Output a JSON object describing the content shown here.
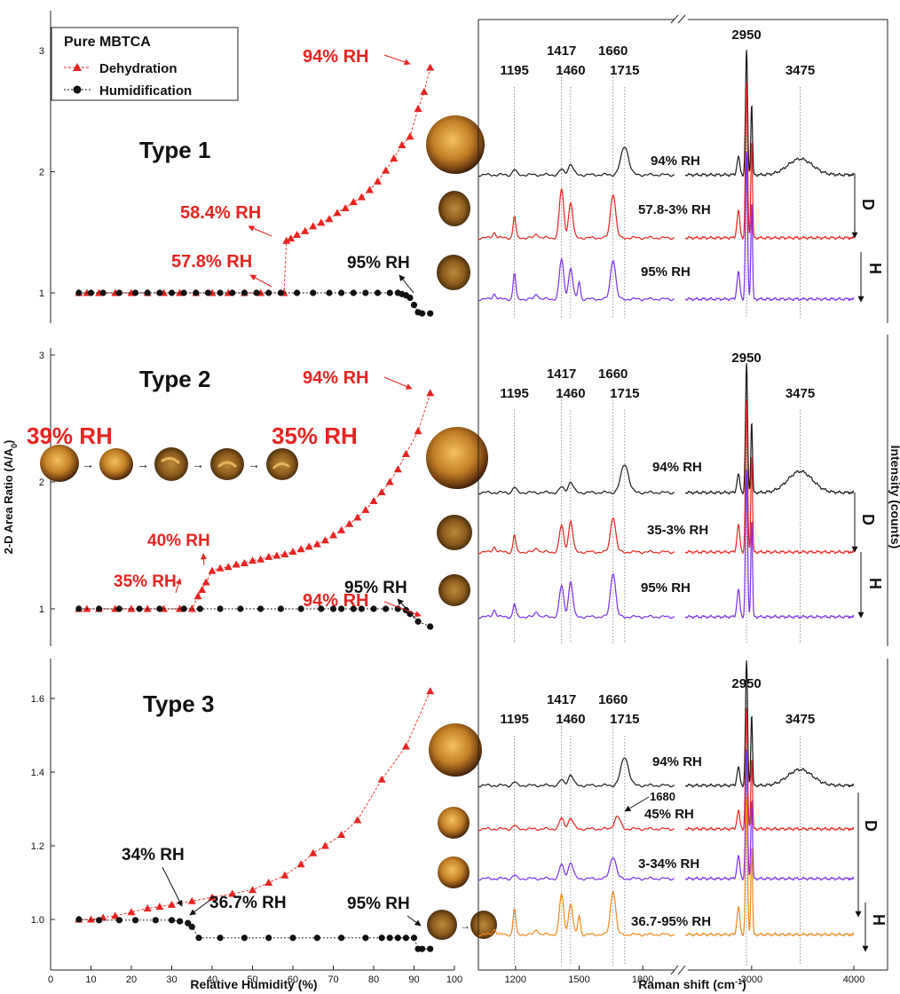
{
  "colors": {
    "dehydration": "#e8231f",
    "humidification": "#111111",
    "trace_94": "#1a1a1a",
    "trace_red": "#e8231f",
    "trace_violet": "#7a2ff0",
    "trace_orange": "#f08a1c",
    "particle": "#c9862b"
  },
  "legend": {
    "title": "Pure MBTCA",
    "dehydration": "Dehydration",
    "humidification": "Humidification"
  },
  "left_axes": {
    "ylabel": "2-D Area Ratio (A/A",
    "ylabel_sub": "0",
    "ylabel_end": ")",
    "xlabel": "Relative Humidity (%)",
    "xticks": [
      "0",
      "10",
      "20",
      "30",
      "40",
      "50",
      "60",
      "70",
      "80",
      "90",
      "100"
    ]
  },
  "right_axes": {
    "xlabel": "Raman shift (cm",
    "xlabel_sup": "-1",
    "xlabel_end": ")",
    "xticks": [
      "1200",
      "1500",
      "1800",
      "3000",
      "4000"
    ],
    "ylabel": "Intensity (counts)",
    "peaks": [
      "1195",
      "1417",
      "1460",
      "1660",
      "1715",
      "2950",
      "3475"
    ],
    "peak_1680": "1680"
  },
  "panels": [
    {
      "title": "Type 1",
      "yticks": [
        "1",
        "2",
        "3"
      ],
      "annotations": {
        "top": "94% RH",
        "deliq_high": "58.4% RH",
        "deliq_low": "57.8% RH",
        "hum_end": "95% RH"
      },
      "trace_labels": [
        "94% RH",
        "57.8-3% RH",
        "95% RH"
      ],
      "arrows": [
        "D",
        "H"
      ]
    },
    {
      "title": "Type 2",
      "yticks": [
        "1",
        "2",
        "3"
      ],
      "annotations": {
        "top": "94% RH",
        "deliq_high": "40% RH",
        "deliq_low": "35% RH",
        "hum_end": "95% RH",
        "seq_start": "39% RH",
        "seq_end": "35% RH"
      },
      "trace_labels": [
        "94% RH",
        "35-3% RH",
        "95% RH"
      ],
      "arrows": [
        "D",
        "H"
      ]
    },
    {
      "title": "Type 3",
      "yticks": [
        "1.0",
        "1.2",
        "1.4",
        "1.6"
      ],
      "annotations": {
        "top": "94% RH",
        "eff_a": "34% RH",
        "eff_b": "36.7% RH",
        "hum_end": "95% RH"
      },
      "trace_labels": [
        "94% RH",
        "45% RH",
        "3-34% RH",
        "36.7-95% RH"
      ],
      "arrows": [
        "D",
        "H"
      ]
    }
  ],
  "chart_data": [
    {
      "type": "line",
      "title": "Type 1",
      "xlabel": "Relative Humidity (%)",
      "ylabel": "2-D Area Ratio (A/A0)",
      "xlim": [
        0,
        100
      ],
      "ylim": [
        0.75,
        3.25
      ],
      "series": [
        {
          "name": "Dehydration",
          "x": [
            94,
            92.5,
            91,
            89,
            87,
            85,
            83,
            81,
            79,
            77,
            75,
            73,
            71,
            69,
            67,
            65,
            63,
            61,
            59.5,
            58.4,
            57.8,
            52,
            48,
            44,
            40,
            36,
            32,
            28,
            24,
            20,
            16,
            12,
            9,
            7
          ],
          "values": [
            2.86,
            2.66,
            2.52,
            2.29,
            2.22,
            2.11,
            2.01,
            1.92,
            1.85,
            1.79,
            1.75,
            1.7,
            1.66,
            1.61,
            1.58,
            1.55,
            1.51,
            1.48,
            1.45,
            1.43,
            1.0,
            1.0,
            1.0,
            1.0,
            1.0,
            1.0,
            1.0,
            1.0,
            1.0,
            1.0,
            1.0,
            1.0,
            1.0,
            1.0
          ]
        },
        {
          "name": "Humidification",
          "x": [
            7,
            10,
            13,
            17,
            21,
            24,
            27,
            30,
            33,
            36,
            39,
            42,
            45,
            48,
            51,
            54,
            57,
            61,
            65,
            69,
            72,
            75,
            78,
            81,
            84,
            86,
            87,
            88,
            89,
            90,
            91,
            92,
            94
          ],
          "values": [
            1.0,
            1.0,
            1.0,
            1.0,
            1.0,
            1.0,
            1.0,
            1.0,
            1.0,
            1.0,
            1.0,
            1.0,
            1.0,
            1.0,
            1.0,
            1.0,
            1.0,
            1.0,
            1.0,
            1.0,
            1.0,
            1.0,
            1.0,
            1.0,
            1.0,
            1.0,
            0.99,
            0.98,
            0.96,
            0.9,
            0.84,
            0.83,
            0.83
          ]
        }
      ]
    },
    {
      "type": "line",
      "title": "Type 2",
      "xlabel": "Relative Humidity (%)",
      "ylabel": "2-D Area Ratio (A/A0)",
      "xlim": [
        0,
        100
      ],
      "ylim": [
        0.75,
        3.0
      ],
      "series": [
        {
          "name": "Dehydration",
          "x": [
            94,
            91,
            88,
            86,
            84,
            82,
            80,
            78,
            76,
            74,
            72,
            70,
            68,
            66,
            64,
            62,
            60,
            58,
            56,
            54,
            52,
            50,
            48,
            46,
            44,
            42,
            40,
            38.5,
            37.5,
            36.5,
            35,
            32,
            28,
            24,
            20,
            16,
            12,
            9,
            7
          ],
          "values": [
            2.7,
            2.4,
            2.22,
            2.1,
            2.0,
            1.92,
            1.85,
            1.78,
            1.72,
            1.67,
            1.62,
            1.58,
            1.54,
            1.51,
            1.49,
            1.47,
            1.45,
            1.43,
            1.42,
            1.41,
            1.39,
            1.38,
            1.36,
            1.35,
            1.33,
            1.32,
            1.3,
            1.21,
            1.15,
            1.1,
            1.0,
            1.0,
            1.0,
            1.0,
            1.0,
            1.0,
            1.0,
            1.0,
            1.0
          ]
        },
        {
          "name": "Humidification",
          "x": [
            7,
            12,
            17,
            22,
            27,
            33,
            37,
            42,
            47,
            52,
            57,
            62,
            67,
            70,
            72,
            75,
            77,
            80,
            83,
            86,
            88,
            89,
            91,
            94
          ],
          "values": [
            1.0,
            1.0,
            1.0,
            1.0,
            1.0,
            1.0,
            1.0,
            1.0,
            1.0,
            1.0,
            1.0,
            1.0,
            1.0,
            1.0,
            1.0,
            1.0,
            1.0,
            1.0,
            1.0,
            1.0,
            0.99,
            0.96,
            0.9,
            0.86
          ]
        }
      ]
    },
    {
      "type": "line",
      "title": "Type 3",
      "xlabel": "Relative Humidity (%)",
      "ylabel": "2-D Area Ratio (A/A0)",
      "xlim": [
        0,
        100
      ],
      "ylim": [
        0.9,
        1.7
      ],
      "series": [
        {
          "name": "Dehydration",
          "x": [
            94,
            88,
            82,
            76,
            72,
            68,
            65,
            62,
            58,
            54,
            50,
            45,
            40,
            35,
            30,
            27,
            24,
            20,
            16,
            13,
            10,
            7
          ],
          "values": [
            1.62,
            1.47,
            1.38,
            1.27,
            1.23,
            1.2,
            1.18,
            1.15,
            1.12,
            1.1,
            1.08,
            1.07,
            1.06,
            1.05,
            1.04,
            1.035,
            1.03,
            1.02,
            1.01,
            1.005,
            1.0,
            1.0
          ]
        },
        {
          "name": "Humidification",
          "x": [
            7,
            12,
            17,
            21,
            26,
            30,
            32,
            34,
            35,
            36.7,
            42,
            48,
            54,
            60,
            66,
            72,
            78,
            82,
            84,
            86,
            88,
            90,
            91,
            92,
            94
          ],
          "values": [
            1.0,
            0.998,
            0.998,
            0.998,
            0.998,
            0.998,
            0.995,
            0.99,
            0.98,
            0.95,
            0.95,
            0.95,
            0.95,
            0.95,
            0.95,
            0.95,
            0.95,
            0.95,
            0.95,
            0.95,
            0.95,
            0.95,
            0.92,
            0.92,
            0.92
          ]
        }
      ]
    }
  ]
}
